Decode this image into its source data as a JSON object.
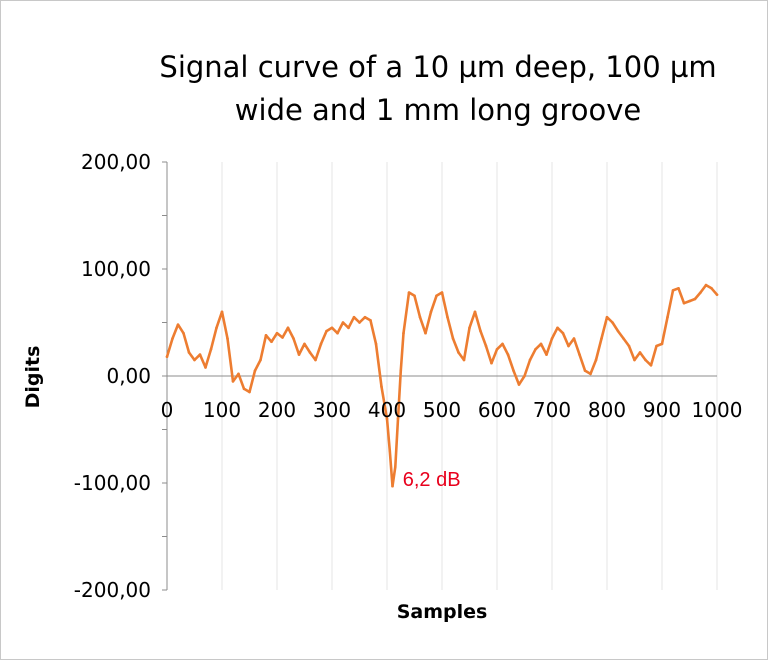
{
  "chart_data": {
    "type": "line",
    "title_lines": [
      "Signal curve of a 10 µm deep, 100 µm",
      "wide and 1 mm long groove"
    ],
    "xlabel": "Samples",
    "ylabel": "Digits",
    "xlim": [
      0,
      1000
    ],
    "ylim": [
      -200,
      200
    ],
    "x_ticks": [
      0,
      100,
      200,
      300,
      400,
      500,
      600,
      700,
      800,
      900,
      1000
    ],
    "x_tick_labels": [
      "0",
      "100",
      "200",
      "300",
      "400",
      "500",
      "600",
      "700",
      "800",
      "900",
      "1000"
    ],
    "y_ticks": [
      200,
      100,
      0,
      -100,
      -200
    ],
    "y_tick_labels": [
      "200,00",
      "100,00",
      "0,00",
      "-100,00",
      "-200,00"
    ],
    "grid": "vertical",
    "legend": "none",
    "series": [
      {
        "name": "Signal",
        "color": "#ed7d31",
        "x": [
          0,
          10,
          20,
          30,
          40,
          50,
          60,
          70,
          80,
          90,
          100,
          110,
          120,
          130,
          140,
          150,
          160,
          170,
          180,
          190,
          200,
          210,
          220,
          230,
          240,
          250,
          260,
          270,
          280,
          290,
          300,
          310,
          320,
          330,
          340,
          350,
          360,
          370,
          380,
          390,
          400,
          405,
          410,
          415,
          420,
          425,
          430,
          440,
          450,
          460,
          470,
          480,
          490,
          500,
          510,
          520,
          530,
          540,
          550,
          560,
          570,
          580,
          590,
          600,
          610,
          620,
          630,
          640,
          650,
          660,
          670,
          680,
          690,
          700,
          710,
          720,
          730,
          740,
          750,
          760,
          770,
          780,
          790,
          800,
          810,
          820,
          830,
          840,
          850,
          860,
          870,
          880,
          890,
          900,
          910,
          920,
          930,
          940,
          950,
          960,
          970,
          980,
          990,
          1000
        ],
        "y": [
          18,
          35,
          48,
          40,
          22,
          15,
          20,
          8,
          25,
          45,
          60,
          35,
          -5,
          2,
          -12,
          -15,
          5,
          15,
          38,
          32,
          40,
          36,
          45,
          35,
          20,
          30,
          22,
          15,
          30,
          42,
          45,
          40,
          50,
          45,
          55,
          50,
          55,
          52,
          30,
          -10,
          -40,
          -70,
          -103,
          -85,
          -40,
          5,
          40,
          78,
          75,
          55,
          40,
          60,
          75,
          78,
          55,
          35,
          22,
          15,
          45,
          60,
          42,
          28,
          12,
          25,
          30,
          20,
          5,
          -8,
          0,
          15,
          25,
          30,
          20,
          35,
          45,
          40,
          28,
          35,
          20,
          5,
          2,
          15,
          35,
          55,
          50,
          42,
          35,
          28,
          15,
          22,
          15,
          10,
          28,
          30,
          55,
          80,
          82,
          68,
          70,
          72,
          78,
          85,
          82,
          76
        ]
      }
    ],
    "annotations": [
      {
        "text": "6,2 dB",
        "x": 425,
        "y": -100,
        "color": "#e8001c"
      }
    ]
  }
}
